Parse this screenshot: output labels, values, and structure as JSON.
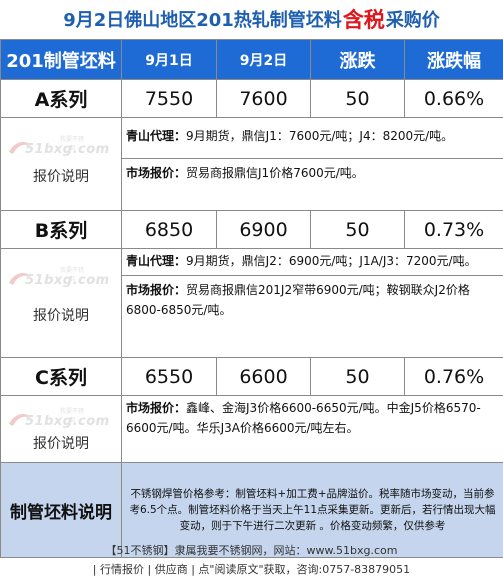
{
  "title": {
    "before": "9月2日佛山地区201热轧制管坯料",
    "highlight": "含税",
    "after": "采购价"
  },
  "headers": [
    "201制管坯料",
    "9月1日",
    "9月2日",
    "涨跌",
    "涨跌幅"
  ],
  "series": [
    {
      "name": "A系列",
      "sep1": "7550",
      "sep2": "7600",
      "change": "50",
      "pct": "0.66%",
      "notes": [
        {
          "label": "青山代理：",
          "text": "9月期货，鼎信J1：7600元/吨；J4：8200元/吨。"
        },
        {
          "label": "市场报价：",
          "text": "贸易商报鼎信J1价格7600元/吨。"
        }
      ]
    },
    {
      "name": "B系列",
      "sep1": "6850",
      "sep2": "6900",
      "change": "50",
      "pct": "0.73%",
      "notes": [
        {
          "label": "青山代理：",
          "text": "9月期货，鼎信J2：6900元/吨；J1A/J3：7200元/吨。"
        },
        {
          "label": "市场报价：",
          "text": "贸易商报鼎信201J2窄带6900元/吨；鞍钢联众J2价格6800-6850元/吨。"
        }
      ]
    },
    {
      "name": "C系列",
      "sep1": "6550",
      "sep2": "6600",
      "change": "50",
      "pct": "0.76%",
      "notes": [
        {
          "label": "市场报价：",
          "text": "鑫峰、金海J3价格6600-6650元/吨。中金J5价格6570-6600元/吨。华乐J3A价格6600元/吨左右。"
        }
      ]
    }
  ],
  "note_label": "报价说明",
  "watermark": {
    "text": "51bxg.com",
    "small": "我要不锈钢"
  },
  "footer_section": {
    "label": "制管坯料说明",
    "text": "不锈钢焊管价格参考：制管坯料+加工费+品牌溢价。税率随市场变动，当前参考6.5个点。制管坯料价格于当天上午11点采集更新。更新后，若行情出现大幅变动，则于下午进行二次更新 。价格变动频繁，仅供参考"
  },
  "footer": {
    "line1": "【51不锈钢】隶属我要不锈钢网，网站：www.51bxg.com",
    "line2": "| 行情报价 | 供应商 | 点\"阅读原文\"获取，咨询:0757-83879051"
  },
  "colors": {
    "header_bg": "#1e6bd6",
    "title": "#1f5fb0",
    "highlight": "#e0161d",
    "foot_bg": "#c5d5ee"
  }
}
